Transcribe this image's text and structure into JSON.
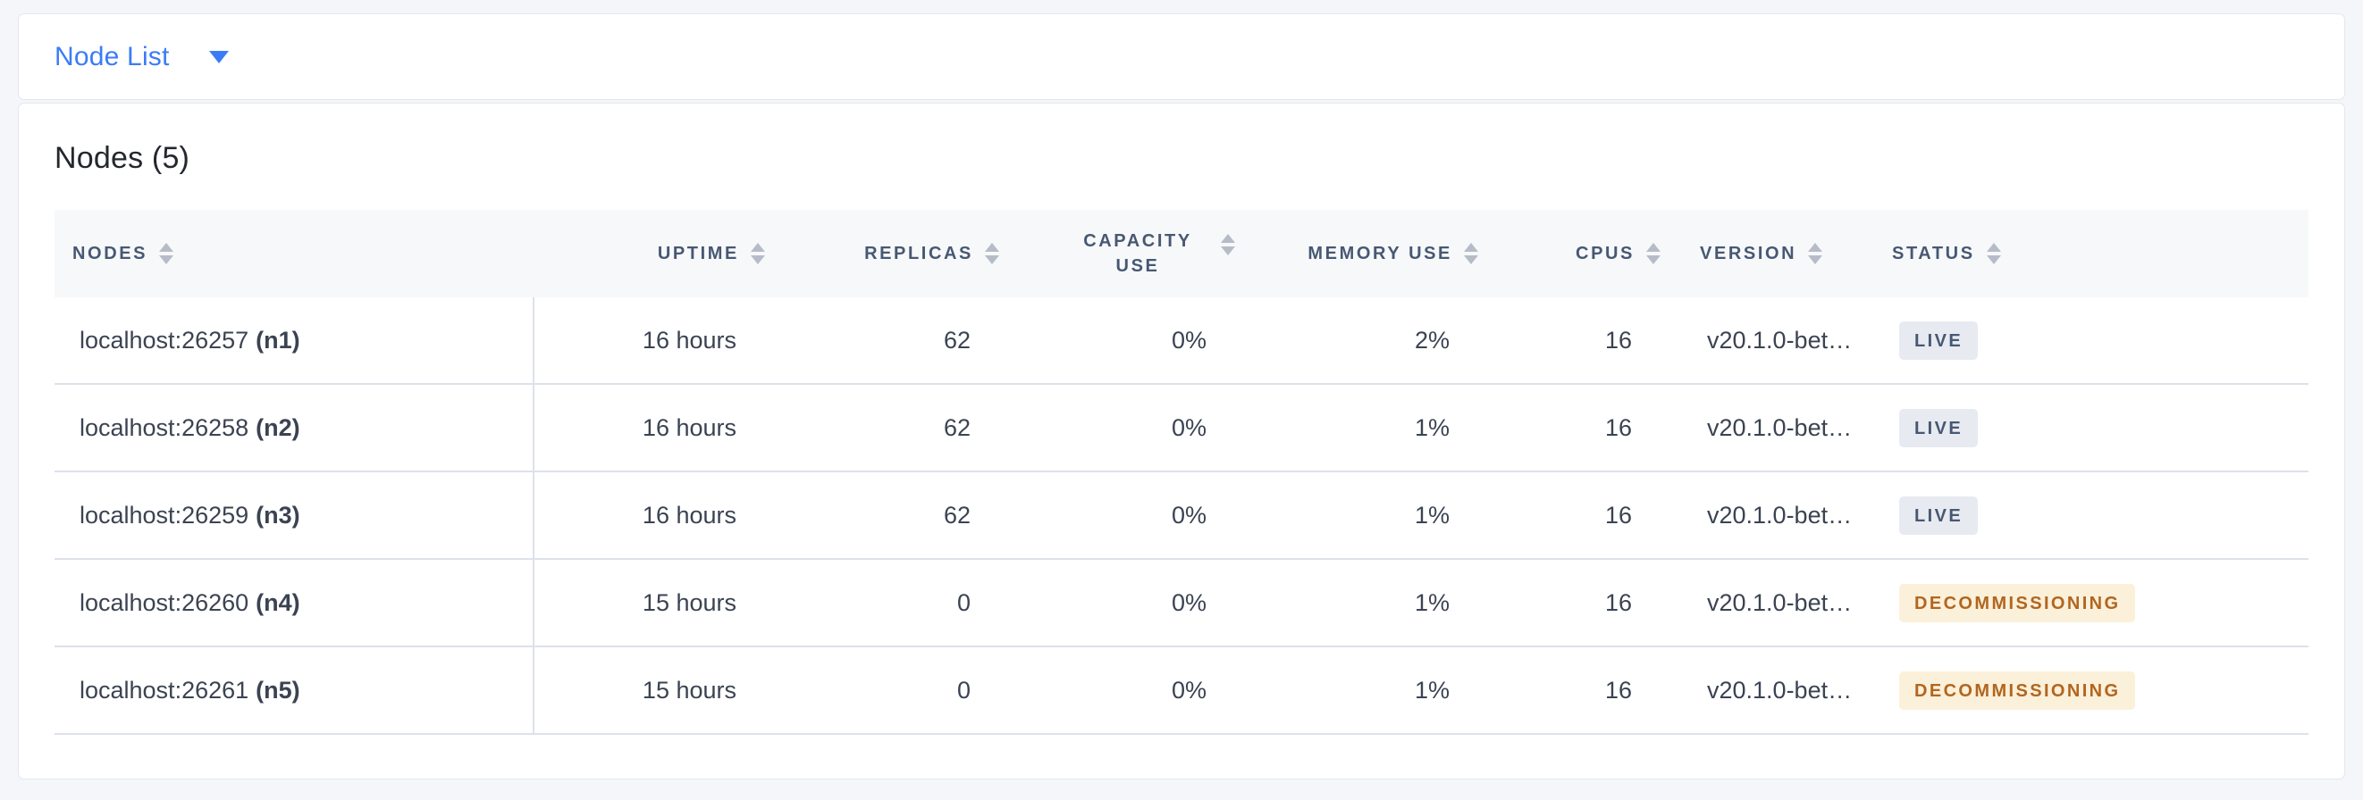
{
  "header": {
    "view_selector_label": "Node List"
  },
  "main": {
    "title": "Nodes (5)"
  },
  "colors": {
    "accent_blue": "#3b7cf6",
    "header_text": "#475872",
    "live_badge_bg": "#e7eaf1",
    "live_badge_text": "#475872",
    "decommissioning_badge_bg": "#fbf0da",
    "decommissioning_badge_text": "#b1661f"
  },
  "table": {
    "columns": [
      {
        "key": "nodes",
        "label": "NODES"
      },
      {
        "key": "uptime",
        "label": "UPTIME"
      },
      {
        "key": "replicas",
        "label": "REPLICAS"
      },
      {
        "key": "capacity_use",
        "label": "CAPACITY USE"
      },
      {
        "key": "memory_use",
        "label": "MEMORY USE"
      },
      {
        "key": "cpus",
        "label": "CPUS"
      },
      {
        "key": "version",
        "label": "VERSION"
      },
      {
        "key": "status",
        "label": "STATUS"
      }
    ],
    "rows": [
      {
        "address": "localhost:26257",
        "id": "(n1)",
        "uptime": "16 hours",
        "replicas": "62",
        "capacity_use": "0%",
        "memory_use": "2%",
        "cpus": "16",
        "version": "v20.1.0-bet…",
        "status": "LIVE",
        "status_variant": "live"
      },
      {
        "address": "localhost:26258",
        "id": "(n2)",
        "uptime": "16 hours",
        "replicas": "62",
        "capacity_use": "0%",
        "memory_use": "1%",
        "cpus": "16",
        "version": "v20.1.0-bet…",
        "status": "LIVE",
        "status_variant": "live"
      },
      {
        "address": "localhost:26259",
        "id": "(n3)",
        "uptime": "16 hours",
        "replicas": "62",
        "capacity_use": "0%",
        "memory_use": "1%",
        "cpus": "16",
        "version": "v20.1.0-bet…",
        "status": "LIVE",
        "status_variant": "live"
      },
      {
        "address": "localhost:26260",
        "id": "(n4)",
        "uptime": "15 hours",
        "replicas": "0",
        "capacity_use": "0%",
        "memory_use": "1%",
        "cpus": "16",
        "version": "v20.1.0-bet…",
        "status": "DECOMMISSIONING",
        "status_variant": "decommissioning"
      },
      {
        "address": "localhost:26261",
        "id": "(n5)",
        "uptime": "15 hours",
        "replicas": "0",
        "capacity_use": "0%",
        "memory_use": "1%",
        "cpus": "16",
        "version": "v20.1.0-bet…",
        "status": "DECOMMISSIONING",
        "status_variant": "decommissioning"
      }
    ]
  }
}
